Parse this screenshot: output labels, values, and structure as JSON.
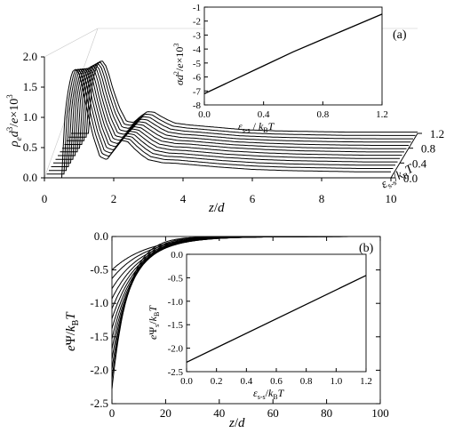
{
  "chart_data": [
    {
      "id": "a-main",
      "type": "line",
      "panel_label": "",
      "xlabel_parts": [
        "z",
        "/",
        "d"
      ],
      "ylabel_parts": [
        "ρ",
        "e",
        "d",
        "3",
        "/",
        "e",
        "×10",
        "3"
      ],
      "depth_label_parts": [
        "ε",
        "s-s",
        "/",
        "k",
        "B",
        "T"
      ],
      "xlim": [
        0,
        10
      ],
      "ylim": [
        0,
        2.0
      ],
      "depth_lim": [
        0,
        1.2
      ],
      "xticks": [
        "0",
        "2",
        "4",
        "6",
        "8",
        "10"
      ],
      "yticks": [
        "0.0",
        "0.5",
        "1.0",
        "1.5",
        "2.0"
      ],
      "depth_ticks": [
        "0.0",
        "0.4",
        "0.8",
        "1.2"
      ],
      "series_params": [
        0,
        0.1,
        0.2,
        0.3,
        0.4,
        0.5,
        0.6,
        0.7,
        0.8,
        0.9,
        1.0,
        1.1,
        1.2
      ],
      "series": [
        {
          "param": 0.0,
          "x": [
            0,
            0.5,
            0.55,
            0.6,
            0.7,
            0.8,
            0.9,
            1.0,
            1.1,
            1.2,
            1.4,
            1.6,
            1.8,
            2.0,
            2.2,
            2.4,
            2.6,
            2.8,
            3.0,
            3.4,
            3.8,
            4.2,
            4.6,
            5.0,
            6,
            7,
            8,
            9,
            10
          ],
          "y": [
            0,
            0,
            0.6,
            1.1,
            1.5,
            1.75,
            1.8,
            1.72,
            1.5,
            1.2,
            0.7,
            0.35,
            0.3,
            0.45,
            0.62,
            0.6,
            0.48,
            0.38,
            0.3,
            0.25,
            0.24,
            0.22,
            0.2,
            0.18,
            0.14,
            0.12,
            0.11,
            0.1,
            0.1
          ]
        },
        {
          "param": 0.6,
          "x": [
            0,
            0.5,
            0.55,
            0.6,
            0.7,
            0.8,
            0.9,
            1.0,
            1.1,
            1.2,
            1.4,
            1.6,
            1.8,
            2.0,
            2.2,
            2.4,
            2.6,
            2.8,
            3.0,
            3.4,
            3.8,
            4.2,
            4.6,
            5.0,
            6,
            7,
            8,
            9,
            10
          ],
          "y": [
            0,
            0,
            0.5,
            0.95,
            1.25,
            1.42,
            1.45,
            1.38,
            1.2,
            0.95,
            0.55,
            0.28,
            0.25,
            0.36,
            0.48,
            0.46,
            0.38,
            0.3,
            0.24,
            0.2,
            0.19,
            0.17,
            0.15,
            0.13,
            0.1,
            0.08,
            0.07,
            0.06,
            0.06
          ]
        },
        {
          "param": 1.2,
          "x": [
            0,
            0.5,
            0.55,
            0.6,
            0.7,
            0.8,
            0.9,
            1.0,
            1.1,
            1.2,
            1.4,
            1.6,
            1.8,
            2.0,
            2.2,
            2.4,
            2.6,
            2.8,
            3.0,
            3.4,
            3.8,
            4.2,
            4.6,
            5.0,
            6,
            7,
            8,
            9,
            10
          ],
          "y": [
            0,
            0,
            0.4,
            0.8,
            1.05,
            1.18,
            1.2,
            1.12,
            0.96,
            0.75,
            0.42,
            0.2,
            0.18,
            0.28,
            0.36,
            0.35,
            0.28,
            0.22,
            0.17,
            0.14,
            0.12,
            0.1,
            0.08,
            0.06,
            0.04,
            0.03,
            0.02,
            0.02,
            0.02
          ]
        }
      ]
    },
    {
      "id": "a-inset",
      "type": "line",
      "panel_label": "(a)",
      "xlabel_parts": [
        "ε",
        "s-s",
        " / ",
        "k",
        "B",
        "T"
      ],
      "ylabel_parts": [
        "σ",
        "d",
        "2",
        "/",
        "e",
        "×10",
        "3"
      ],
      "xlim": [
        0,
        1.2
      ],
      "ylim": [
        -8,
        -1
      ],
      "xticks": [
        "0.0",
        "0.4",
        "0.8",
        "1.2"
      ],
      "yticks": [
        "-8",
        "-7",
        "-6",
        "-5",
        "-4",
        "-3",
        "-2",
        "-1"
      ],
      "series": [
        {
          "x": [
            0,
            0.2,
            0.4,
            0.6,
            0.8,
            1.0,
            1.2
          ],
          "y": [
            -7.2,
            -6.2,
            -5.2,
            -4.2,
            -3.3,
            -2.4,
            -1.5
          ]
        }
      ]
    },
    {
      "id": "b-main",
      "type": "line",
      "panel_label": "(b)",
      "xlabel_parts": [
        "z",
        "/",
        "d"
      ],
      "ylabel_parts": [
        "e",
        "Ψ",
        "/",
        "k",
        "B",
        "T"
      ],
      "xlim": [
        0,
        100
      ],
      "ylim": [
        -2.5,
        0
      ],
      "xticks": [
        "0",
        "20",
        "40",
        "60",
        "80",
        "100"
      ],
      "yticks": [
        "0.0",
        "-0.5",
        "-1.0",
        "-1.5",
        "-2.0",
        "-2.5"
      ],
      "series_params": [
        0,
        0.1,
        0.2,
        0.3,
        0.4,
        0.5,
        0.6,
        0.7,
        0.8,
        0.9,
        1.0,
        1.1,
        1.2
      ],
      "series_psi0": [
        -2.28,
        -2.13,
        -1.98,
        -1.83,
        -1.68,
        -1.53,
        -1.38,
        -1.23,
        -1.08,
        -0.93,
        -0.78,
        -0.63,
        -0.5
      ],
      "series_decay_length": [
        6.0,
        6.6,
        7.2,
        7.8,
        8.4,
        9.0,
        9.6,
        10.2,
        10.8,
        11.4,
        12.0,
        12.6,
        13.2
      ]
    },
    {
      "id": "b-inset",
      "type": "line",
      "panel_label": "",
      "xlabel_parts": [
        "ε",
        "s-s",
        "/",
        "k",
        "B",
        "T"
      ],
      "ylabel_parts": [
        "e",
        "Ψ",
        "s",
        "/",
        "k",
        "B",
        "T"
      ],
      "xlim": [
        0,
        1.2
      ],
      "ylim": [
        -2.5,
        0
      ],
      "xticks": [
        "0.0",
        "0.2",
        "0.4",
        "0.6",
        "0.8",
        "1.0",
        "1.2"
      ],
      "yticks": [
        "0.0",
        "-0.5",
        "-1.0",
        "-1.5",
        "-2.0",
        "-2.5"
      ],
      "series": [
        {
          "x": [
            0,
            1.2
          ],
          "y": [
            -2.3,
            -0.45
          ]
        }
      ]
    }
  ]
}
